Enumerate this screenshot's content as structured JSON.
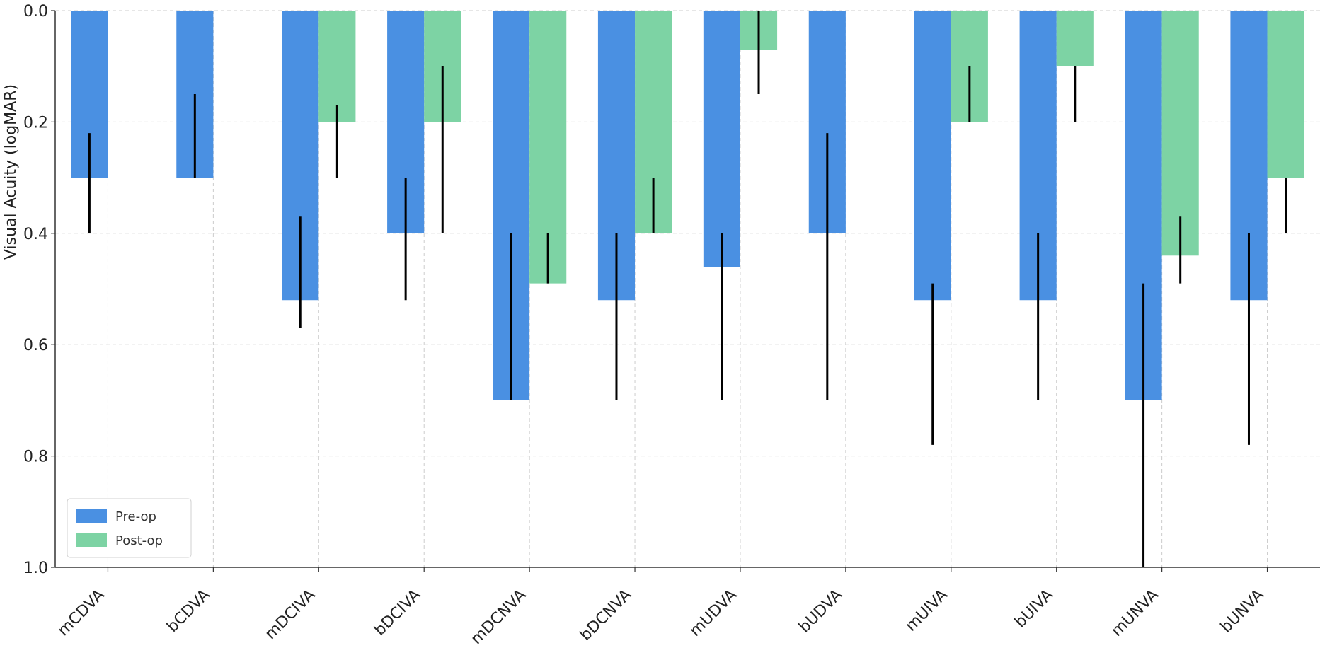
{
  "chart_data": {
    "type": "bar",
    "ylabel": "Visual Acuity (logMAR)",
    "xlabel": "",
    "ylim": [
      0,
      1
    ],
    "y_inverted": true,
    "y_ticks": [
      "0.0",
      "0.2",
      "0.4",
      "0.6",
      "0.8",
      "1.0"
    ],
    "grid": true,
    "legend_position": "bottom-left",
    "categories": [
      "mCDVA",
      "bCDVA",
      "mDCIVA",
      "bDCIVA",
      "mDCNVA",
      "bDCNVA",
      "mUDVA",
      "bUDVA",
      "mUIVA",
      "bUIVA",
      "mUNVA",
      "bUNVA"
    ],
    "series": [
      {
        "name": "Pre-op",
        "color": "#4a90e2",
        "values": [
          0.3,
          0.3,
          0.52,
          0.4,
          0.7,
          0.52,
          0.46,
          0.4,
          0.52,
          0.52,
          0.7,
          0.52
        ],
        "error_low": [
          0.22,
          0.15,
          0.37,
          0.3,
          0.4,
          0.4,
          0.4,
          0.22,
          0.49,
          0.4,
          0.49,
          0.4
        ],
        "error_high": [
          0.4,
          0.3,
          0.57,
          0.52,
          0.7,
          0.7,
          0.7,
          0.7,
          0.78,
          0.7,
          1.0,
          0.78
        ]
      },
      {
        "name": "Post-op",
        "color": "#7dd3a4",
        "values": [
          null,
          null,
          0.2,
          0.2,
          0.49,
          0.4,
          0.07,
          null,
          0.2,
          0.1,
          0.44,
          0.3
        ],
        "error_low": [
          null,
          null,
          0.17,
          0.1,
          0.4,
          0.3,
          0.0,
          null,
          0.1,
          0.1,
          0.37,
          0.3
        ],
        "error_high": [
          null,
          null,
          0.3,
          0.4,
          0.49,
          0.4,
          0.15,
          null,
          0.2,
          0.2,
          0.49,
          0.4
        ]
      }
    ]
  }
}
